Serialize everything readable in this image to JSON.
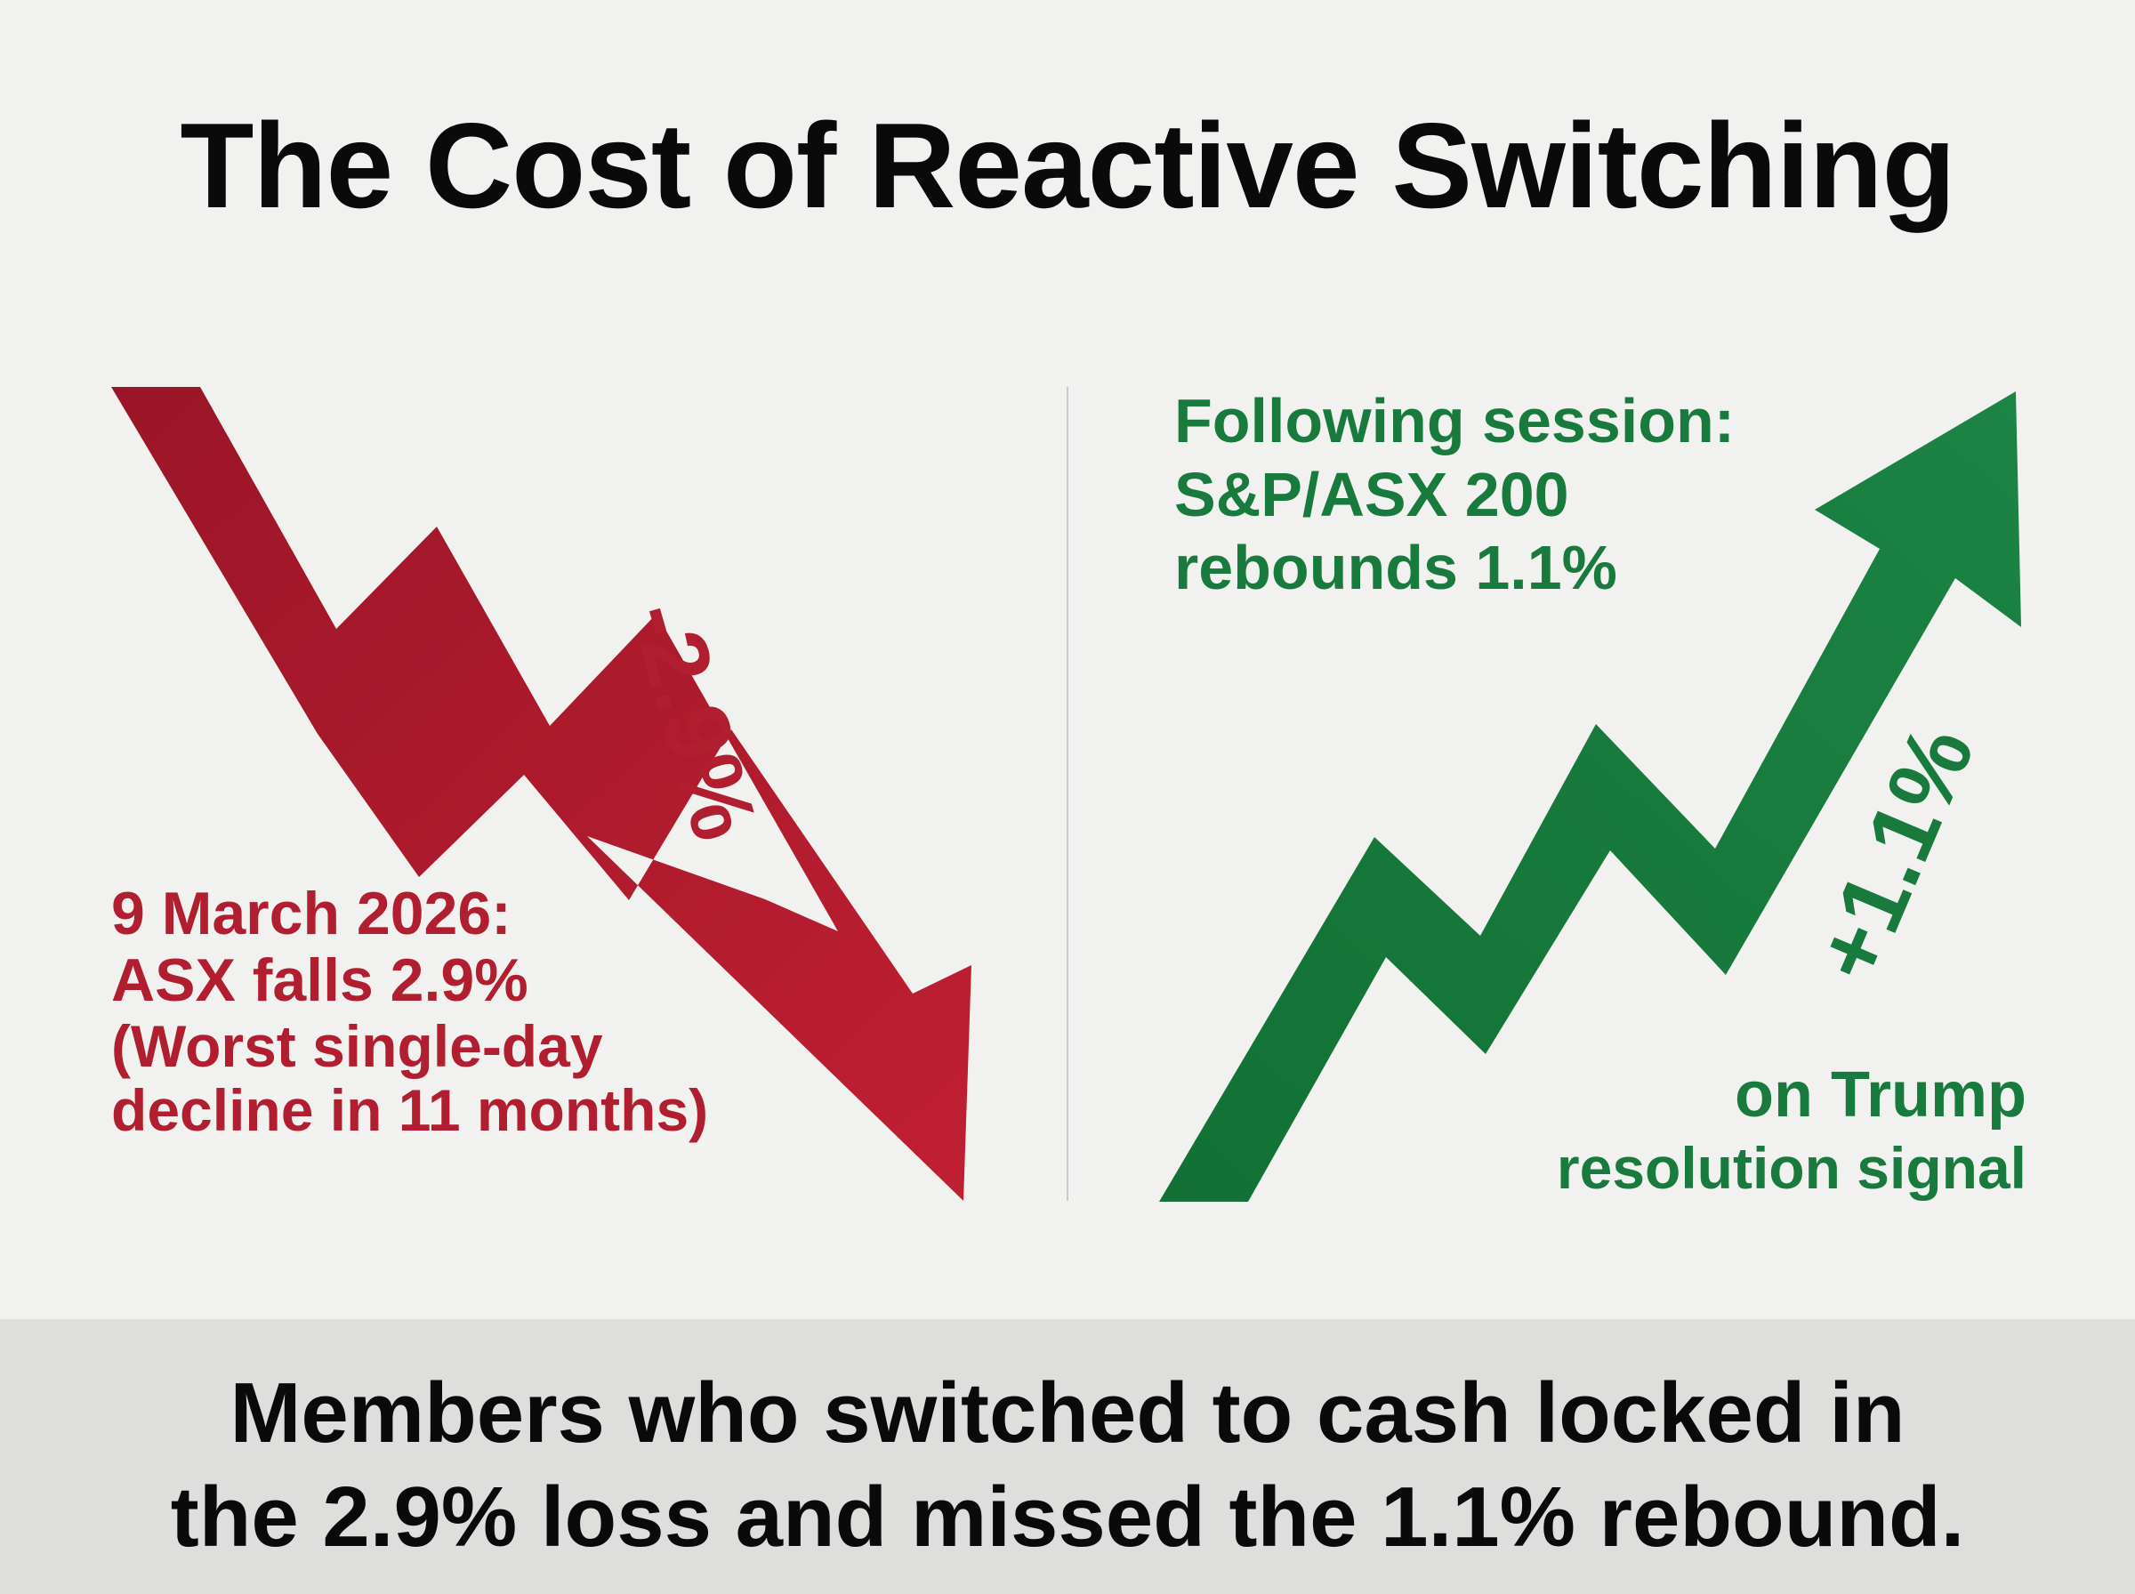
{
  "title": "The Cost of Reactive Switching",
  "left": {
    "arrow_label": "-2.9%",
    "line1": "9 March 2026:",
    "line2": "ASX falls 2.9%",
    "line3": "(Worst single-day",
    "line4": "decline in 11 months)",
    "color": "#b01e30"
  },
  "right": {
    "arrow_label": "+1.1%",
    "line1": "Following session:",
    "line2": "S&P/ASX 200",
    "line3": "rebounds 1.1%",
    "line4": "on Trump",
    "line5": "resolution signal",
    "color": "#187a3c"
  },
  "footer": {
    "line1": "Members who switched to cash locked in",
    "line2": "the 2.9% loss and missed the 1.1% rebound."
  }
}
